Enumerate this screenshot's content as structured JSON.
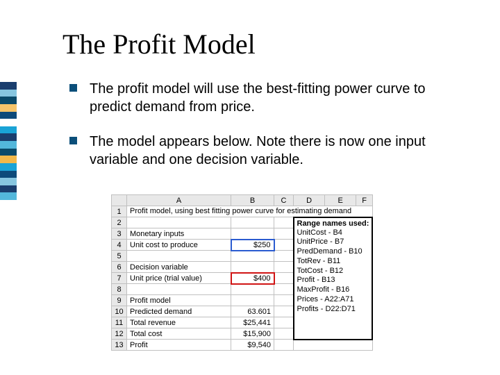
{
  "title": "The Profit Model",
  "bullets": {
    "b1": "The profit model will use the best-fitting power curve to predict demand from price.",
    "b2": "The model appears below. Note there is now one input variable and one decision variable."
  },
  "sidebar_colors": [
    "#1a3e6e",
    "#87c6e0",
    "#0a4a6a",
    "#f5c46a",
    "#0d4a7a",
    "#ffffff",
    "#1aa3d6",
    "#1a3e6e",
    "#53b7db",
    "#0a4a6a",
    "#f2b84a",
    "#1aa3d6",
    "#0d4a7a",
    "#87c6e0",
    "#1a3e6e",
    "#53b7db"
  ],
  "cols": {
    "a": "A",
    "b": "B",
    "c": "C",
    "d": "D",
    "e": "E",
    "f": "F"
  },
  "rows": {
    "r1": {
      "a": "Profit model, using best fitting power curve for estimating demand"
    },
    "r3": {
      "a": "Monetary inputs"
    },
    "r4": {
      "a": "Unit cost to produce",
      "b": "$250"
    },
    "r6": {
      "a": "Decision variable"
    },
    "r7": {
      "a": "Unit price (trial value)",
      "b": "$400"
    },
    "r9": {
      "a": "Profit model"
    },
    "r10": {
      "a": "Predicted demand",
      "b": "63.601"
    },
    "r11": {
      "a": "Total revenue",
      "b": "$25,441"
    },
    "r12": {
      "a": "Total cost",
      "b": "$15,900"
    },
    "r13": {
      "a": "Profit",
      "b": "$9,540"
    }
  },
  "range_names": {
    "title": "Range names used:",
    "l1": "UnitCost - B4",
    "l2": "UnitPrice - B7",
    "l3": "PredDemand - B10",
    "l4": "TotRev - B11",
    "l5": "TotCost - B12",
    "l6": "Profit - B13",
    "l7": "MaxProfit - B16",
    "l8": "Prices - A22:A71",
    "l9": "Profits - D22:D71"
  }
}
